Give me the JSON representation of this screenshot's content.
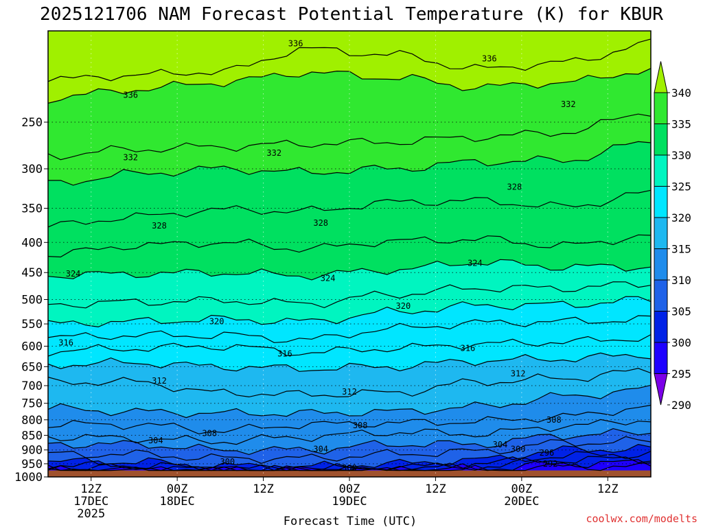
{
  "chart_data": {
    "type": "heatmap",
    "title": "2025121706 NAM Forecast Potential Temperature (K) for KBUR",
    "xlabel": "Forecast Time (UTC)",
    "ylabel": "",
    "x_range_hours": [
      0,
      84
    ],
    "y_range_hPa": [
      175,
      1000
    ],
    "y_scale": "log-pressure",
    "y_ticks": [
      250,
      300,
      350,
      400,
      450,
      500,
      550,
      600,
      650,
      700,
      750,
      800,
      850,
      900,
      950,
      1000
    ],
    "x_ticks": [
      {
        "hour": 6,
        "line1": "12Z",
        "line2": "17DEC",
        "line3": "2025"
      },
      {
        "hour": 18,
        "line1": "00Z",
        "line2": "18DEC",
        "line3": ""
      },
      {
        "hour": 30,
        "line1": "12Z",
        "line2": "",
        "line3": ""
      },
      {
        "hour": 42,
        "line1": "00Z",
        "line2": "19DEC",
        "line3": ""
      },
      {
        "hour": 54,
        "line1": "12Z",
        "line2": "",
        "line3": ""
      },
      {
        "hour": 66,
        "line1": "00Z",
        "line2": "20DEC",
        "line3": ""
      },
      {
        "hour": 78,
        "line1": "12Z",
        "line2": "",
        "line3": ""
      }
    ],
    "colorbar": {
      "levels": [
        290,
        295,
        300,
        305,
        310,
        315,
        320,
        325,
        330,
        335,
        340
      ],
      "labels": [
        "290",
        "295",
        "300",
        "305",
        "310",
        "315",
        "320",
        "325",
        "330",
        "335",
        "340"
      ],
      "colors": [
        "#7b00e8",
        "#1e00ff",
        "#0022e6",
        "#1f62e8",
        "#1f8ceb",
        "#1eb8f0",
        "#00e6ff",
        "#00f5c0",
        "#00e060",
        "#30e830",
        "#a0f000"
      ],
      "extend": "both"
    },
    "ground_level_hPa": 975,
    "ground_color": "#a0522d",
    "grid": "dotted",
    "contour_interval": 2,
    "contour_levels": [
      292,
      294,
      296,
      298,
      300,
      302,
      304,
      306,
      308,
      310,
      312,
      314,
      316,
      318,
      320,
      322,
      324,
      326,
      328,
      330,
      332,
      334,
      336
    ],
    "contour_profiles": [
      {
        "level": 336,
        "hPa": [
          212,
          208,
          205,
          188,
          192,
          203,
          198,
          184
        ]
      },
      {
        "level": 334,
        "hPa": [
          228,
          220,
          214,
          206,
          210,
          218,
          214,
          204
        ]
      },
      {
        "level": 332,
        "hPa": [
          285,
          278,
          275,
          272,
          270,
          265,
          260,
          240
        ]
      },
      {
        "level": 330,
        "hPa": [
          318,
          306,
          300,
          304,
          300,
          292,
          290,
          270
        ]
      },
      {
        "level": 328,
        "hPa": [
          375,
          362,
          352,
          354,
          342,
          340,
          348,
          330
        ]
      },
      {
        "level": 326,
        "hPa": [
          420,
          405,
          400,
          410,
          398,
          395,
          405,
          390
        ]
      },
      {
        "level": 324,
        "hPa": [
          455,
          452,
          450,
          455,
          445,
          432,
          440,
          440
        ]
      },
      {
        "level": 322,
        "hPa": [
          510,
          505,
          502,
          508,
          490,
          478,
          478,
          470
        ]
      },
      {
        "level": 320,
        "hPa": [
          550,
          545,
          540,
          545,
          525,
          512,
          510,
          500
        ]
      },
      {
        "level": 318,
        "hPa": [
          580,
          575,
          575,
          585,
          560,
          548,
          545,
          540
        ]
      },
      {
        "level": 316,
        "hPa": [
          612,
          605,
          600,
          615,
          605,
          595,
          590,
          580
        ]
      },
      {
        "level": 314,
        "hPa": [
          645,
          640,
          650,
          655,
          650,
          635,
          630,
          620
        ]
      },
      {
        "level": 312,
        "hPa": [
          690,
          690,
          720,
          725,
          720,
          690,
          680,
          660
        ]
      },
      {
        "level": 310,
        "hPa": [
          765,
          775,
          780,
          780,
          775,
          760,
          730,
          710
        ]
      },
      {
        "level": 308,
        "hPa": [
          815,
          815,
          835,
          815,
          810,
          805,
          790,
          760
        ]
      },
      {
        "level": 306,
        "hPa": [
          855,
          860,
          870,
          855,
          840,
          845,
          820,
          800
        ]
      },
      {
        "level": 304,
        "hPa": [
          880,
          880,
          900,
          900,
          880,
          880,
          850,
          840
        ]
      },
      {
        "level": 302,
        "hPa": [
          915,
          915,
          930,
          930,
          915,
          905,
          875,
          870
        ]
      },
      {
        "level": 300,
        "hPa": [
          942,
          942,
          958,
          960,
          950,
          935,
          900,
          895
        ]
      },
      {
        "level": 298,
        "hPa": [
          955,
          955,
          968,
          970,
          965,
          950,
          920,
          915
        ]
      },
      {
        "level": 296,
        "hPa": [
          965,
          965,
          972,
          974,
          972,
          960,
          935,
          930
        ]
      },
      {
        "level": 294,
        "hPa": [
          975,
          975,
          975,
          975,
          975,
          968,
          950,
          945
        ]
      },
      {
        "level": 292,
        "hPa": [
          975,
          975,
          975,
          975,
          975,
          975,
          962,
          960
        ]
      }
    ],
    "contour_labels": [
      {
        "text": "336",
        "hour": 34.5,
        "hPa": 184
      },
      {
        "text": "336",
        "hour": 11.5,
        "hPa": 225
      },
      {
        "text": "336",
        "hour": 61.5,
        "hPa": 195
      },
      {
        "text": "332",
        "hour": 72.5,
        "hPa": 233
      },
      {
        "text": "332",
        "hour": 11.5,
        "hPa": 287
      },
      {
        "text": "332",
        "hour": 31.5,
        "hPa": 282
      },
      {
        "text": "328",
        "hour": 65,
        "hPa": 322
      },
      {
        "text": "328",
        "hour": 15.5,
        "hPa": 375
      },
      {
        "text": "328",
        "hour": 38,
        "hPa": 371
      },
      {
        "text": "324",
        "hour": 3.5,
        "hPa": 452
      },
      {
        "text": "324",
        "hour": 39,
        "hPa": 460
      },
      {
        "text": "324",
        "hour": 59.5,
        "hPa": 434
      },
      {
        "text": "320",
        "hour": 49.5,
        "hPa": 513
      },
      {
        "text": "320",
        "hour": 23.5,
        "hPa": 545
      },
      {
        "text": "316",
        "hour": 2.5,
        "hPa": 592
      },
      {
        "text": "316",
        "hour": 33,
        "hPa": 618
      },
      {
        "text": "316",
        "hour": 58.5,
        "hPa": 605
      },
      {
        "text": "312",
        "hour": 65.5,
        "hPa": 668
      },
      {
        "text": "312",
        "hour": 15.5,
        "hPa": 687
      },
      {
        "text": "312",
        "hour": 42,
        "hPa": 717
      },
      {
        "text": "308",
        "hour": 70.5,
        "hPa": 800
      },
      {
        "text": "308",
        "hour": 22.5,
        "hPa": 843
      },
      {
        "text": "308",
        "hour": 43.5,
        "hPa": 818
      },
      {
        "text": "304",
        "hour": 15,
        "hPa": 867
      },
      {
        "text": "304",
        "hour": 38,
        "hPa": 897
      },
      {
        "text": "304",
        "hour": 63,
        "hPa": 882
      },
      {
        "text": "300",
        "hour": 65.5,
        "hPa": 897
      },
      {
        "text": "296",
        "hour": 69.5,
        "hPa": 911
      },
      {
        "text": "300",
        "hour": 25,
        "hPa": 943
      },
      {
        "text": "300",
        "hour": 42,
        "hPa": 966
      },
      {
        "text": "292",
        "hour": 70,
        "hPa": 950
      }
    ],
    "credit": "coolwx.com/modelts"
  }
}
